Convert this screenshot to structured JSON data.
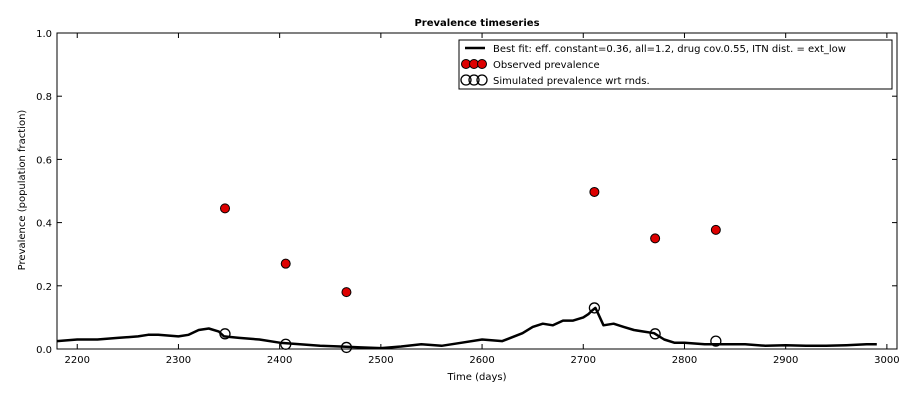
{
  "chart_data": {
    "type": "line",
    "title": "Prevalence timeseries",
    "xlabel": "Time (days)",
    "ylabel": "Prevalence (population fraction)",
    "xlim": [
      2180,
      3010
    ],
    "ylim": [
      0.0,
      1.0
    ],
    "xticks": [
      2200,
      2300,
      2400,
      2500,
      2600,
      2700,
      2800,
      2900,
      3000
    ],
    "yticks": [
      0.0,
      0.2,
      0.4,
      0.6,
      0.8,
      1.0
    ],
    "xtick_labels": [
      "2200",
      "2300",
      "2400",
      "2500",
      "2600",
      "2700",
      "2800",
      "2900",
      "3000"
    ],
    "ytick_labels": [
      "0.0",
      "0.2",
      "0.4",
      "0.6",
      "0.8",
      "1.0"
    ],
    "grid": false,
    "legend_position": "top-right",
    "series": [
      {
        "name": "Best fit: eff. constant=0.36, all=1.2, drug cov.0.55, ITN dist. = ext_low",
        "kind": "line",
        "color": "#000000",
        "x": [
          2180,
          2200,
          2220,
          2240,
          2260,
          2270,
          2280,
          2300,
          2310,
          2320,
          2330,
          2340,
          2345,
          2360,
          2380,
          2400,
          2420,
          2440,
          2460,
          2480,
          2500,
          2520,
          2540,
          2560,
          2580,
          2600,
          2620,
          2640,
          2650,
          2660,
          2670,
          2680,
          2690,
          2700,
          2705,
          2708,
          2712,
          2715,
          2720,
          2730,
          2740,
          2750,
          2760,
          2770,
          2780,
          2790,
          2800,
          2820,
          2840,
          2860,
          2880,
          2900,
          2920,
          2940,
          2960,
          2980,
          2990
        ],
        "y": [
          0.025,
          0.03,
          0.03,
          0.035,
          0.04,
          0.045,
          0.045,
          0.04,
          0.045,
          0.06,
          0.065,
          0.055,
          0.04,
          0.035,
          0.03,
          0.02,
          0.015,
          0.01,
          0.008,
          0.005,
          0.003,
          0.008,
          0.015,
          0.01,
          0.02,
          0.03,
          0.025,
          0.05,
          0.07,
          0.08,
          0.075,
          0.09,
          0.09,
          0.1,
          0.11,
          0.12,
          0.13,
          0.11,
          0.075,
          0.08,
          0.07,
          0.06,
          0.055,
          0.05,
          0.03,
          0.02,
          0.02,
          0.015,
          0.015,
          0.015,
          0.01,
          0.012,
          0.01,
          0.01,
          0.012,
          0.015,
          0.015
        ]
      },
      {
        "name": "Observed prevalence",
        "kind": "scatter",
        "marker": "filled-circle",
        "color": "#dd0000",
        "x": [
          2346,
          2406,
          2466,
          2711,
          2771,
          2831
        ],
        "y": [
          0.445,
          0.27,
          0.18,
          0.497,
          0.35,
          0.377
        ]
      },
      {
        "name": "Simulated prevalence wrt rnds.",
        "kind": "scatter",
        "marker": "open-circle",
        "color": "#000000",
        "x": [
          2346,
          2406,
          2466,
          2711,
          2771,
          2831
        ],
        "y": [
          0.048,
          0.015,
          0.005,
          0.13,
          0.048,
          0.025
        ]
      }
    ]
  }
}
